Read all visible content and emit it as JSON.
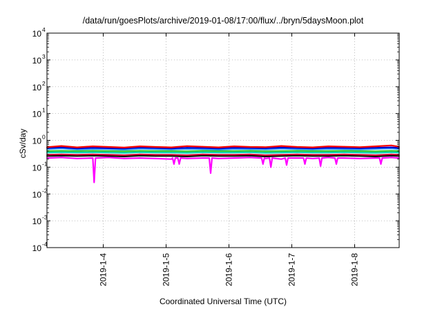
{
  "chart_data": {
    "type": "line",
    "title": "/data/run/goesPlots/archive/2019-01-08/17:00/flux/../bryn/5daysMoon.plot",
    "xlabel": "Coordinated Universal Time (UTC)",
    "ylabel": "cSv/day",
    "y_scale": "log",
    "ylim": [
      0.0001,
      10000
    ],
    "xlim": [
      "2019-01-03T02:30",
      "2019-01-08T17:00"
    ],
    "grid": true,
    "legend": "none",
    "y_ticks": [
      {
        "base": "10",
        "exp": "-4",
        "value": 0.0001
      },
      {
        "base": "10",
        "exp": "-3",
        "value": 0.001
      },
      {
        "base": "10",
        "exp": "-2",
        "value": 0.01
      },
      {
        "base": "10",
        "exp": "-1",
        "value": 0.1
      },
      {
        "base": "10",
        "exp": "0",
        "value": 1
      },
      {
        "base": "10",
        "exp": "1",
        "value": 10
      },
      {
        "base": "10",
        "exp": "2",
        "value": 100
      },
      {
        "base": "10",
        "exp": "3",
        "value": 1000
      },
      {
        "base": "10",
        "exp": "4",
        "value": 10000
      }
    ],
    "x_ticks": [
      {
        "label": "2019-1-4",
        "value": "2019-01-04T00:00"
      },
      {
        "label": "2019-1-5",
        "value": "2019-01-05T00:00"
      },
      {
        "label": "2019-1-6",
        "value": "2019-01-06T00:00"
      },
      {
        "label": "2019-1-7",
        "value": "2019-01-07T00:00"
      },
      {
        "label": "2019-1-8",
        "value": "2019-01-08T00:00"
      }
    ],
    "x": [
      "2019-01-03T02:30",
      "2019-01-03T08:00",
      "2019-01-03T14:00",
      "2019-01-03T20:00",
      "2019-01-04T02:00",
      "2019-01-04T08:00",
      "2019-01-04T14:00",
      "2019-01-04T20:00",
      "2019-01-05T02:00",
      "2019-01-05T08:00",
      "2019-01-05T14:00",
      "2019-01-05T20:00",
      "2019-01-06T02:00",
      "2019-01-06T08:00",
      "2019-01-06T14:00",
      "2019-01-06T20:00",
      "2019-01-07T02:00",
      "2019-01-07T08:00",
      "2019-01-07T14:00",
      "2019-01-07T20:00",
      "2019-01-08T02:00",
      "2019-01-08T08:00",
      "2019-01-08T14:00",
      "2019-01-08T17:00"
    ],
    "series": [
      {
        "color": "#ff00ff",
        "values": [
          0.22,
          0.23,
          0.21,
          0.22,
          0.23,
          0.21,
          0.22,
          0.21,
          0.2,
          0.21,
          0.22,
          0.21,
          0.22,
          0.23,
          0.21,
          0.2,
          0.22,
          0.21,
          0.23,
          0.22,
          0.21,
          0.22,
          0.23,
          0.22
        ],
        "dips": [
          {
            "x": "2019-01-03T20:30",
            "y": 0.027
          },
          {
            "x": "2019-01-05T03:00",
            "y": 0.13
          },
          {
            "x": "2019-01-05T05:00",
            "y": 0.13
          },
          {
            "x": "2019-01-05T17:00",
            "y": 0.06
          },
          {
            "x": "2019-01-06T13:00",
            "y": 0.13
          },
          {
            "x": "2019-01-06T16:00",
            "y": 0.1
          },
          {
            "x": "2019-01-06T22:00",
            "y": 0.12
          },
          {
            "x": "2019-01-07T05:00",
            "y": 0.13
          },
          {
            "x": "2019-01-07T11:00",
            "y": 0.11
          },
          {
            "x": "2019-01-07T17:00",
            "y": 0.13
          },
          {
            "x": "2019-01-08T10:00",
            "y": 0.13
          }
        ]
      },
      {
        "color": "#000000",
        "values": [
          0.26,
          0.27,
          0.26,
          0.27,
          0.26,
          0.25,
          0.27,
          0.26,
          0.26,
          0.25,
          0.27,
          0.26,
          0.26,
          0.27,
          0.25,
          0.26,
          0.27,
          0.26,
          0.26,
          0.27,
          0.26,
          0.25,
          0.27,
          0.26
        ]
      },
      {
        "color": "#cc0033",
        "values": [
          0.29,
          0.3,
          0.29,
          0.3,
          0.29,
          0.28,
          0.3,
          0.29,
          0.29,
          0.28,
          0.3,
          0.29,
          0.29,
          0.3,
          0.28,
          0.29,
          0.3,
          0.29,
          0.29,
          0.3,
          0.29,
          0.28,
          0.3,
          0.29
        ]
      },
      {
        "color": "#00d0b0",
        "values": [
          0.35,
          0.36,
          0.35,
          0.36,
          0.35,
          0.34,
          0.36,
          0.35,
          0.35,
          0.34,
          0.36,
          0.35,
          0.35,
          0.36,
          0.34,
          0.35,
          0.36,
          0.35,
          0.35,
          0.36,
          0.35,
          0.34,
          0.36,
          0.35
        ]
      },
      {
        "color": "#33cc33",
        "values": [
          0.4,
          0.41,
          0.4,
          0.41,
          0.4,
          0.39,
          0.41,
          0.4,
          0.4,
          0.39,
          0.41,
          0.4,
          0.4,
          0.41,
          0.39,
          0.4,
          0.41,
          0.4,
          0.4,
          0.41,
          0.4,
          0.39,
          0.41,
          0.4
        ]
      },
      {
        "color": "#1e90ff",
        "values": [
          0.47,
          0.5,
          0.46,
          0.48,
          0.47,
          0.45,
          0.49,
          0.47,
          0.46,
          0.48,
          0.47,
          0.45,
          0.48,
          0.47,
          0.46,
          0.49,
          0.47,
          0.46,
          0.48,
          0.47,
          0.46,
          0.48,
          0.5,
          0.47
        ]
      },
      {
        "color": "#0000cc",
        "values": [
          0.52,
          0.55,
          0.5,
          0.53,
          0.51,
          0.5,
          0.54,
          0.52,
          0.5,
          0.53,
          0.52,
          0.5,
          0.53,
          0.52,
          0.51,
          0.54,
          0.52,
          0.5,
          0.53,
          0.52,
          0.51,
          0.53,
          0.55,
          0.52
        ]
      },
      {
        "color": "#ff0000",
        "values": [
          0.56,
          0.62,
          0.55,
          0.6,
          0.57,
          0.54,
          0.6,
          0.57,
          0.55,
          0.61,
          0.58,
          0.55,
          0.6,
          0.57,
          0.56,
          0.62,
          0.57,
          0.55,
          0.6,
          0.58,
          0.56,
          0.6,
          0.65,
          0.58
        ]
      }
    ]
  }
}
